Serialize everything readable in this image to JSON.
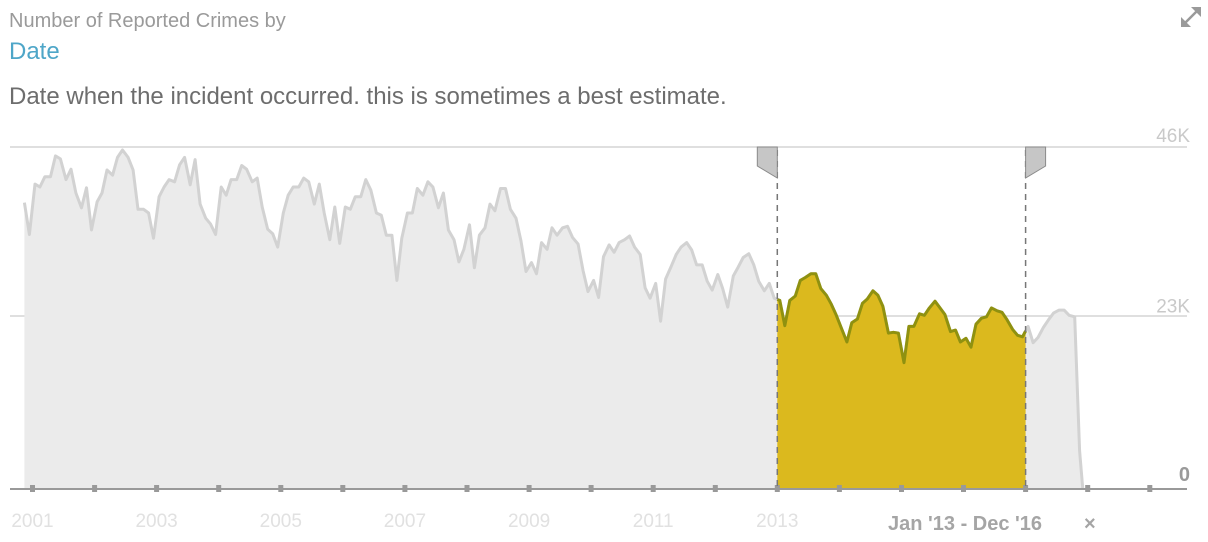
{
  "header": {
    "kicker": "Number of Reported Crimes by",
    "title": "Date",
    "description": "Date when the incident occurred. this is sometimes a best estimate."
  },
  "icons": {
    "expand": "expand-icon"
  },
  "selection": {
    "label": "Jan '13 - Dec '16",
    "clear": "×",
    "start": 2013.0,
    "end": 2017.0
  },
  "colors": {
    "background_area": "#ebebeb",
    "background_line": "#d2d2d2",
    "selected_area": "#dbb91e",
    "selected_line": "#8f9110",
    "gridline": "#cccccc",
    "axis": "#999999",
    "handle": "#c6c6c6"
  },
  "chart_data": {
    "type": "area",
    "title": "",
    "xlabel": "",
    "ylabel": "",
    "xlim": [
      2001.0,
      2019.6
    ],
    "ylim": [
      0,
      46000
    ],
    "x_tick_labels": [
      "2001",
      "2003",
      "2005",
      "2007",
      "2009",
      "2011",
      "2013"
    ],
    "y_tick_labels": [
      "46K",
      "23K",
      "0"
    ],
    "y_ticks": [
      46000,
      23000,
      0
    ],
    "grid": true,
    "series": [
      {
        "values": [
          [
            2000.87,
            38500
          ],
          [
            2000.95,
            34200
          ],
          [
            2001.04,
            41000
          ],
          [
            2001.12,
            40600
          ],
          [
            2001.2,
            42000
          ],
          [
            2001.29,
            42000
          ],
          [
            2001.37,
            44800
          ],
          [
            2001.45,
            44400
          ],
          [
            2001.54,
            41600
          ],
          [
            2001.62,
            43000
          ],
          [
            2001.7,
            39800
          ],
          [
            2001.79,
            37800
          ],
          [
            2001.87,
            40500
          ],
          [
            2001.95,
            34800
          ],
          [
            2002.04,
            38600
          ],
          [
            2002.12,
            39800
          ],
          [
            2002.2,
            42900
          ],
          [
            2002.29,
            42200
          ],
          [
            2002.37,
            44600
          ],
          [
            2002.45,
            45600
          ],
          [
            2002.54,
            44600
          ],
          [
            2002.62,
            42900
          ],
          [
            2002.7,
            37600
          ],
          [
            2002.79,
            37600
          ],
          [
            2002.87,
            37100
          ],
          [
            2002.95,
            33700
          ],
          [
            2003.04,
            39300
          ],
          [
            2003.12,
            40600
          ],
          [
            2003.2,
            41600
          ],
          [
            2003.29,
            41300
          ],
          [
            2003.37,
            43600
          ],
          [
            2003.45,
            44600
          ],
          [
            2003.54,
            40900
          ],
          [
            2003.62,
            44300
          ],
          [
            2003.7,
            38300
          ],
          [
            2003.79,
            36400
          ],
          [
            2003.87,
            35600
          ],
          [
            2003.95,
            34200
          ],
          [
            2004.04,
            40600
          ],
          [
            2004.12,
            39500
          ],
          [
            2004.2,
            41600
          ],
          [
            2004.29,
            41600
          ],
          [
            2004.37,
            43500
          ],
          [
            2004.45,
            43000
          ],
          [
            2004.54,
            41300
          ],
          [
            2004.62,
            41800
          ],
          [
            2004.7,
            37900
          ],
          [
            2004.79,
            34900
          ],
          [
            2004.87,
            34300
          ],
          [
            2004.95,
            32500
          ],
          [
            2005.04,
            37100
          ],
          [
            2005.12,
            39500
          ],
          [
            2005.2,
            40600
          ],
          [
            2005.29,
            40600
          ],
          [
            2005.37,
            41800
          ],
          [
            2005.45,
            41300
          ],
          [
            2005.54,
            38300
          ],
          [
            2005.62,
            41000
          ],
          [
            2005.7,
            37100
          ],
          [
            2005.79,
            33500
          ],
          [
            2005.87,
            37900
          ],
          [
            2005.95,
            33000
          ],
          [
            2006.04,
            37900
          ],
          [
            2006.12,
            37600
          ],
          [
            2006.2,
            39300
          ],
          [
            2006.29,
            39300
          ],
          [
            2006.37,
            41600
          ],
          [
            2006.45,
            40200
          ],
          [
            2006.54,
            37100
          ],
          [
            2006.62,
            36800
          ],
          [
            2006.7,
            34100
          ],
          [
            2006.79,
            34100
          ],
          [
            2006.87,
            28000
          ],
          [
            2006.95,
            33700
          ],
          [
            2007.04,
            37100
          ],
          [
            2007.12,
            37100
          ],
          [
            2007.2,
            40400
          ],
          [
            2007.29,
            39500
          ],
          [
            2007.37,
            41300
          ],
          [
            2007.45,
            40600
          ],
          [
            2007.54,
            37800
          ],
          [
            2007.62,
            39800
          ],
          [
            2007.7,
            34800
          ],
          [
            2007.79,
            33500
          ],
          [
            2007.87,
            30500
          ],
          [
            2007.95,
            32200
          ],
          [
            2008.04,
            35500
          ],
          [
            2008.12,
            29700
          ],
          [
            2008.2,
            34100
          ],
          [
            2008.29,
            35100
          ],
          [
            2008.37,
            38300
          ],
          [
            2008.45,
            37400
          ],
          [
            2008.54,
            40400
          ],
          [
            2008.62,
            40400
          ],
          [
            2008.7,
            37600
          ],
          [
            2008.79,
            36400
          ],
          [
            2008.87,
            33300
          ],
          [
            2008.95,
            29200
          ],
          [
            2009.04,
            30400
          ],
          [
            2009.12,
            28900
          ],
          [
            2009.2,
            33100
          ],
          [
            2009.29,
            32200
          ],
          [
            2009.37,
            35100
          ],
          [
            2009.45,
            34100
          ],
          [
            2009.54,
            35100
          ],
          [
            2009.62,
            35300
          ],
          [
            2009.7,
            33800
          ],
          [
            2009.79,
            32900
          ],
          [
            2009.87,
            29300
          ],
          [
            2009.95,
            26500
          ],
          [
            2010.04,
            28000
          ],
          [
            2010.12,
            25700
          ],
          [
            2010.2,
            31200
          ],
          [
            2010.29,
            32800
          ],
          [
            2010.37,
            31800
          ],
          [
            2010.45,
            33100
          ],
          [
            2010.54,
            33500
          ],
          [
            2010.62,
            34000
          ],
          [
            2010.7,
            32500
          ],
          [
            2010.79,
            31500
          ],
          [
            2010.87,
            27000
          ],
          [
            2010.95,
            25600
          ],
          [
            2011.04,
            27600
          ],
          [
            2011.12,
            22500
          ],
          [
            2011.2,
            28200
          ],
          [
            2011.29,
            29900
          ],
          [
            2011.37,
            31500
          ],
          [
            2011.45,
            32500
          ],
          [
            2011.54,
            33100
          ],
          [
            2011.62,
            32100
          ],
          [
            2011.7,
            30100
          ],
          [
            2011.79,
            30100
          ],
          [
            2011.87,
            27900
          ],
          [
            2011.95,
            26700
          ],
          [
            2012.04,
            28800
          ],
          [
            2012.12,
            26900
          ],
          [
            2012.2,
            24400
          ],
          [
            2012.29,
            28600
          ],
          [
            2012.37,
            29800
          ],
          [
            2012.45,
            31100
          ],
          [
            2012.54,
            31600
          ],
          [
            2012.62,
            30100
          ],
          [
            2012.7,
            27900
          ],
          [
            2012.79,
            26600
          ],
          [
            2012.87,
            27600
          ],
          [
            2012.95,
            25600
          ],
          [
            2013.04,
            25300
          ],
          [
            2013.12,
            21900
          ],
          [
            2013.2,
            25300
          ],
          [
            2013.29,
            25900
          ],
          [
            2013.37,
            28000
          ],
          [
            2013.45,
            28400
          ],
          [
            2013.54,
            28900
          ],
          [
            2013.62,
            28900
          ],
          [
            2013.7,
            26900
          ],
          [
            2013.79,
            26000
          ],
          [
            2013.87,
            24800
          ],
          [
            2013.95,
            23300
          ],
          [
            2014.04,
            21400
          ],
          [
            2014.12,
            19700
          ],
          [
            2014.2,
            22300
          ],
          [
            2014.29,
            22800
          ],
          [
            2014.37,
            24900
          ],
          [
            2014.45,
            25500
          ],
          [
            2014.54,
            26600
          ],
          [
            2014.62,
            26000
          ],
          [
            2014.7,
            24500
          ],
          [
            2014.79,
            20900
          ],
          [
            2014.87,
            21000
          ],
          [
            2014.95,
            20900
          ],
          [
            2015.04,
            16900
          ],
          [
            2015.12,
            21800
          ],
          [
            2015.2,
            21800
          ],
          [
            2015.29,
            23500
          ],
          [
            2015.37,
            23300
          ],
          [
            2015.45,
            24300
          ],
          [
            2015.54,
            25200
          ],
          [
            2015.62,
            24300
          ],
          [
            2015.7,
            23400
          ],
          [
            2015.79,
            21100
          ],
          [
            2015.87,
            21300
          ],
          [
            2015.95,
            19700
          ],
          [
            2016.04,
            20200
          ],
          [
            2016.12,
            19000
          ],
          [
            2016.2,
            22100
          ],
          [
            2016.29,
            22900
          ],
          [
            2016.37,
            23100
          ],
          [
            2016.45,
            24300
          ],
          [
            2016.54,
            23900
          ],
          [
            2016.62,
            23700
          ],
          [
            2016.7,
            22700
          ],
          [
            2016.79,
            21400
          ],
          [
            2016.87,
            20600
          ],
          [
            2016.95,
            20400
          ],
          [
            2017.04,
            21800
          ],
          [
            2017.12,
            19600
          ],
          [
            2017.2,
            20300
          ],
          [
            2017.29,
            21700
          ],
          [
            2017.37,
            22700
          ],
          [
            2017.45,
            23600
          ],
          [
            2017.54,
            24000
          ],
          [
            2017.62,
            24000
          ],
          [
            2017.7,
            23300
          ],
          [
            2017.79,
            23100
          ],
          [
            2017.87,
            5000
          ],
          [
            2017.92,
            0
          ]
        ]
      }
    ]
  }
}
